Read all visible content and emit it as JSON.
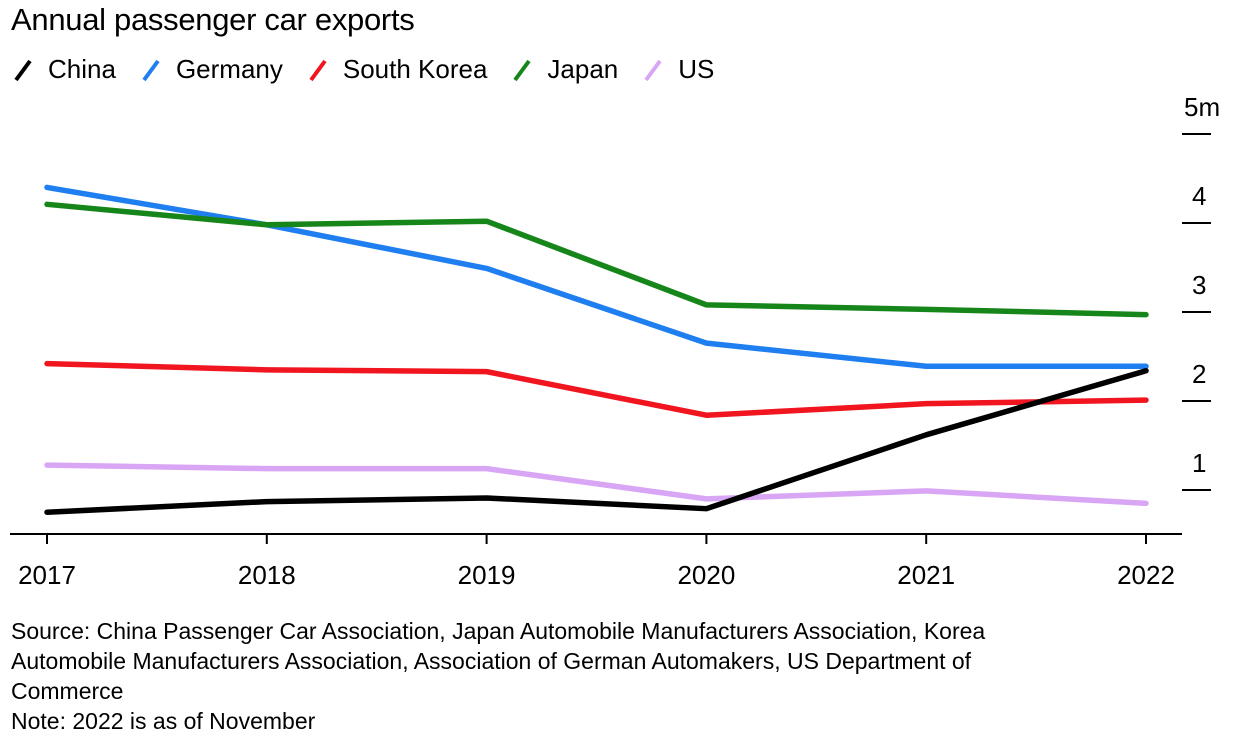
{
  "chart_data": {
    "type": "line",
    "title": "Annual passenger car exports",
    "xlabel": "",
    "ylabel": "",
    "x": [
      "2017",
      "2018",
      "2019",
      "2020",
      "2021",
      "2022"
    ],
    "y_ticks": [
      {
        "value": 1,
        "label": "1"
      },
      {
        "value": 2,
        "label": "2"
      },
      {
        "value": 3,
        "label": "3"
      },
      {
        "value": 4,
        "label": "4"
      },
      {
        "value": 5,
        "label": "5m"
      }
    ],
    "ylim": [
      0.5,
      5
    ],
    "y_axis_position": "right",
    "legend_position": "top-left",
    "grid": false,
    "series": [
      {
        "name": "China",
        "color": "#000000",
        "values": [
          0.75,
          0.87,
          0.91,
          0.79,
          1.62,
          2.34
        ]
      },
      {
        "name": "Germany",
        "color": "#1f7ff0",
        "values": [
          4.4,
          3.98,
          3.49,
          2.65,
          2.39,
          2.39
        ]
      },
      {
        "name": "South Korea",
        "color": "#f0151f",
        "values": [
          2.42,
          2.35,
          2.33,
          1.84,
          1.97,
          2.01
        ]
      },
      {
        "name": "Japan",
        "color": "#16861a",
        "values": [
          4.21,
          3.98,
          4.02,
          3.08,
          3.03,
          2.97
        ]
      },
      {
        "name": "US",
        "color": "#d9a6f5",
        "values": [
          1.28,
          1.24,
          1.24,
          0.9,
          0.99,
          0.85
        ]
      }
    ],
    "notes": [
      "Source: China Passenger Car Association, Japan Automobile Manufacturers Association, Korea",
      "Automobile Manufacturers Association, Association of German Automakers, US Department of",
      "Commerce",
      "Note: 2022 is as of November"
    ]
  }
}
